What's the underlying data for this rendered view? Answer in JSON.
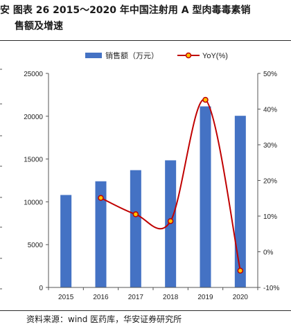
{
  "header": {
    "title_line1": "安   图表 26 2015～2020 年中国注射用 A 型肉毒毒素销",
    "title_line2": "售额及增速"
  },
  "source": "资料来源：wind 医药库，华安证券研究所",
  "colors": {
    "bar": "#4472C4",
    "line": "#C00000",
    "marker_fill": "#FFC000"
  },
  "chart_data": {
    "type": "bar",
    "categories": [
      "2015",
      "2016",
      "2017",
      "2018",
      "2019",
      "2020"
    ],
    "series": [
      {
        "name": "销售额（万元）",
        "type": "bar",
        "axis": "left",
        "values": [
          10800,
          12400,
          13700,
          14850,
          21150,
          20050
        ]
      },
      {
        "name": "YoY(%)",
        "type": "line",
        "axis": "right",
        "values": [
          null,
          15.1,
          10.5,
          8.6,
          42.6,
          -5.3
        ]
      }
    ],
    "left_axis": {
      "min": 0,
      "max": 25000,
      "ticks": [
        "0",
        "5000",
        "10000",
        "15000",
        "20000",
        "25000"
      ]
    },
    "right_axis": {
      "min": -10,
      "max": 50,
      "ticks": [
        "-10%",
        "0%",
        "10%",
        "20%",
        "30%",
        "40%",
        "50%"
      ]
    },
    "legend_position": "top-center",
    "grid": false
  }
}
